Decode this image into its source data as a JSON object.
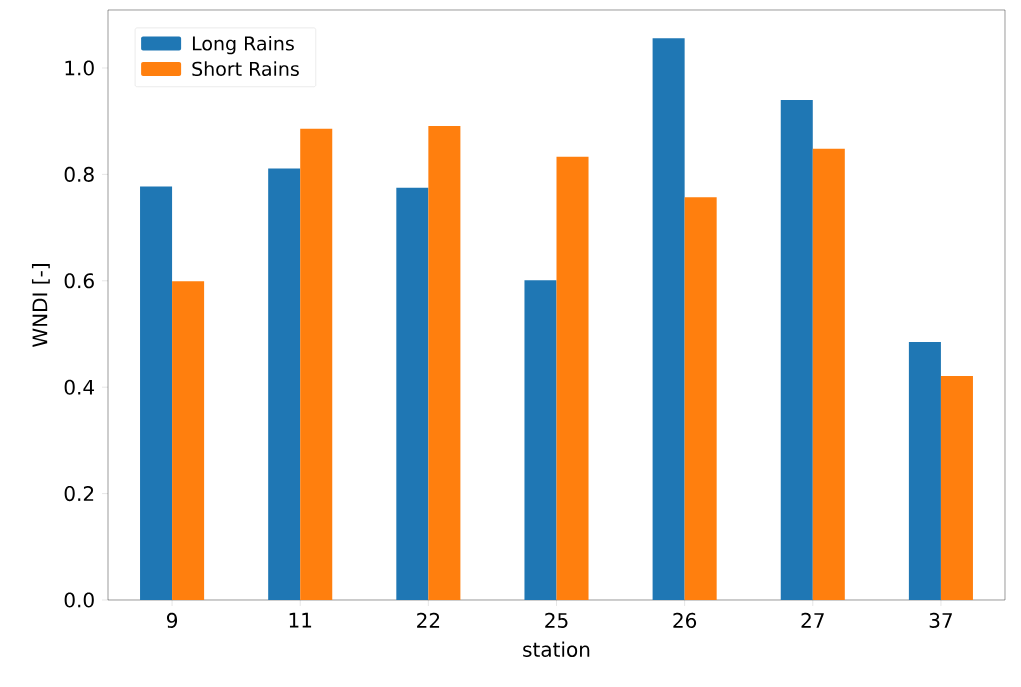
{
  "chart_data": {
    "type": "bar",
    "xlabel": "station",
    "ylabel": "WNDI [-]",
    "categories": [
      "9",
      "11",
      "22",
      "25",
      "26",
      "27",
      "37"
    ],
    "series": [
      {
        "name": "Long Rains",
        "color": "#1f77b4",
        "values": [
          0.777,
          0.811,
          0.775,
          0.601,
          1.056,
          0.94,
          0.485
        ]
      },
      {
        "name": "Short Rains",
        "color": "#ff7f0e",
        "values": [
          0.599,
          0.886,
          0.891,
          0.833,
          0.757,
          0.848,
          0.421
        ]
      }
    ],
    "ylim": [
      0,
      1.109
    ],
    "yticks": [
      {
        "value": 0,
        "label": "0.0"
      },
      0.2,
      0.4,
      0.6,
      0.8,
      {
        "value": 1,
        "label": "1.0"
      }
    ],
    "legend": "top left",
    "grid": false
  }
}
